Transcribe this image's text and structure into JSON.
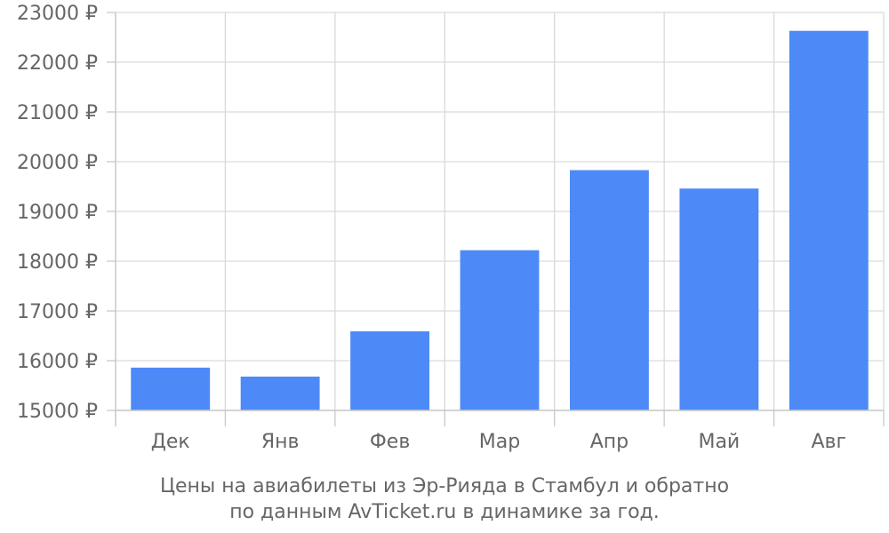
{
  "chart_data": {
    "type": "bar",
    "categories": [
      "Дек",
      "Янв",
      "Фев",
      "Мар",
      "Апр",
      "Май",
      "Авг"
    ],
    "values": [
      15860,
      15680,
      16590,
      18220,
      19830,
      19460,
      22630
    ],
    "ylim": [
      15000,
      23000
    ],
    "yticks": [
      15000,
      16000,
      17000,
      18000,
      19000,
      20000,
      21000,
      22000,
      23000
    ],
    "ytick_suffix": " ₽",
    "grid": true,
    "bar_color": "#4d8af8",
    "caption_line1": "Цены на авиабилеты из Эр-Рияда в Стамбул и обратно",
    "caption_line2": "по данным AvTicket.ru в динамике за год."
  }
}
